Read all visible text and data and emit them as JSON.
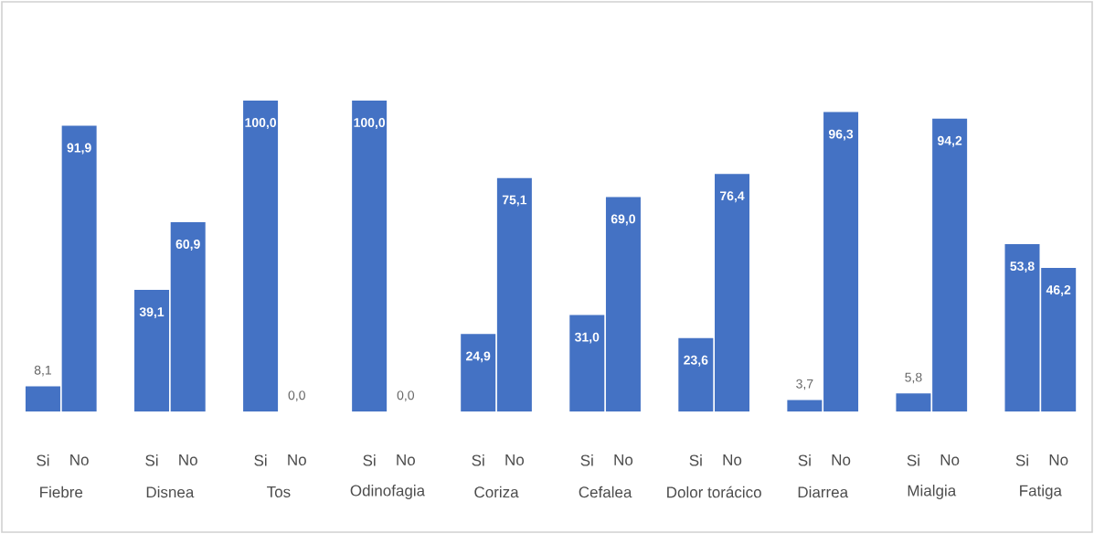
{
  "chart_data": {
    "type": "bar",
    "categories": [
      "Si",
      "No",
      "Si",
      "No",
      "Si",
      "No",
      "Si",
      "No",
      "Si",
      "No",
      "Si",
      "No",
      "Si",
      "No",
      "Si",
      "No",
      "Si",
      "No",
      "Si",
      "No"
    ],
    "values": [
      8.1,
      91.9,
      39.1,
      60.9,
      100.0,
      0.0,
      100.0,
      0.0,
      24.9,
      75.1,
      31.0,
      69.0,
      23.6,
      76.4,
      3.7,
      96.3,
      5.8,
      94.2,
      53.8,
      46.2
    ],
    "value_labels": [
      "8,1",
      "91,9",
      "39,1",
      "60,9",
      "100,0",
      "0,0",
      "100,0",
      "0,0",
      "24,9",
      "75,1",
      "31,0",
      "69,0",
      "23,6",
      "76,4",
      "3,7",
      "96,3",
      "5,8",
      "94,2",
      "53,8",
      "46,2"
    ],
    "color": "#4472c4",
    "ylim": [
      0,
      100
    ],
    "annotations": [
      "Fiebre",
      "Disnea",
      "Tos",
      "Odinofagia",
      "Coriza",
      "Cefalea",
      "Dolor torácico",
      "Diarrea",
      "Mialgia",
      "Fatiga"
    ]
  }
}
